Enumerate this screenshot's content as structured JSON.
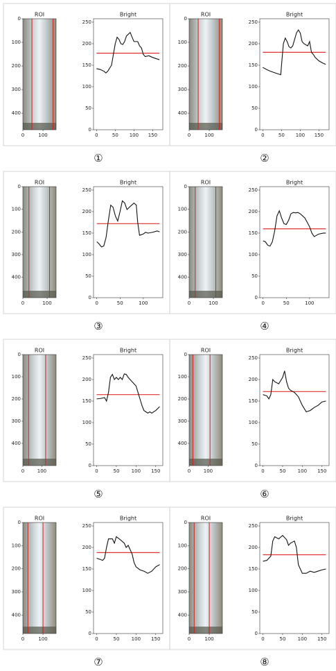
{
  "chart_data": [
    {
      "type": "line",
      "title": "Bright",
      "panel_label": "①",
      "color": "#111111",
      "threshold": 178,
      "threshold_color": "#e03030",
      "x": [
        0,
        10,
        20,
        25,
        30,
        40,
        45,
        50,
        55,
        60,
        65,
        70,
        75,
        80,
        90,
        95,
        100,
        110,
        115,
        120,
        125,
        130,
        140,
        150,
        160,
        168
      ],
      "values": [
        142,
        140,
        136,
        132,
        136,
        150,
        175,
        200,
        215,
        210,
        200,
        198,
        205,
        218,
        226,
        215,
        205,
        205,
        195,
        190,
        175,
        170,
        172,
        168,
        165,
        163
      ],
      "xlim": [
        -8,
        177
      ],
      "ylim": [
        0,
        258
      ],
      "xticks": [
        0,
        50,
        100,
        150
      ],
      "yticks": [
        0,
        50,
        100,
        150,
        200,
        250
      ],
      "roi": {
        "title": "ROI",
        "xlim": [
          0,
          165
        ],
        "ylim": [
          470,
          0
        ],
        "xticks": [
          0,
          100
        ],
        "yticks": [
          0,
          100,
          200,
          300,
          400
        ],
        "lines": [
          45,
          150
        ]
      }
    },
    {
      "type": "line",
      "title": "Bright",
      "panel_label": "②",
      "color": "#111111",
      "threshold": 180,
      "threshold_color": "#e03030",
      "x": [
        0,
        10,
        20,
        30,
        40,
        48,
        50,
        55,
        60,
        65,
        70,
        75,
        80,
        90,
        95,
        100,
        105,
        110,
        120,
        125,
        130,
        135,
        140,
        150,
        160,
        168
      ],
      "values": [
        145,
        140,
        136,
        133,
        130,
        128,
        150,
        200,
        213,
        205,
        193,
        190,
        195,
        225,
        232,
        225,
        205,
        200,
        195,
        205,
        180,
        175,
        168,
        160,
        155,
        152
      ],
      "xlim": [
        -8,
        177
      ],
      "ylim": [
        0,
        258
      ],
      "xticks": [
        0,
        50,
        100,
        150
      ],
      "yticks": [
        0,
        50,
        100,
        150,
        200,
        250
      ],
      "roi": {
        "title": "ROI",
        "xlim": [
          0,
          165
        ],
        "ylim": [
          470,
          0
        ],
        "xticks": [
          0,
          100
        ],
        "yticks": [
          0,
          100,
          200,
          300,
          400
        ],
        "lines": [
          45,
          150
        ]
      }
    },
    {
      "type": "line",
      "title": "Bright",
      "panel_label": "③",
      "color": "#111111",
      "threshold": 172,
      "threshold_color": "#e03030",
      "x": [
        0,
        5,
        10,
        15,
        20,
        25,
        30,
        35,
        40,
        45,
        50,
        55,
        60,
        65,
        70,
        75,
        80,
        85,
        88,
        92,
        100,
        105,
        110,
        120,
        130,
        135
      ],
      "values": [
        130,
        125,
        118,
        120,
        140,
        180,
        215,
        210,
        190,
        178,
        200,
        225,
        220,
        205,
        210,
        215,
        220,
        215,
        175,
        145,
        148,
        152,
        150,
        152,
        155,
        153
      ],
      "xlim": [
        -7,
        142
      ],
      "ylim": [
        0,
        258
      ],
      "xticks": [
        0,
        50,
        100
      ],
      "yticks": [
        0,
        50,
        100,
        150,
        200,
        250
      ],
      "roi": {
        "title": "ROI",
        "xlim": [
          0,
          137
        ],
        "ylim": [
          490,
          0
        ],
        "xticks": [
          0,
          100
        ],
        "yticks": [
          0,
          100,
          200,
          300,
          400
        ],
        "lines": [
          25,
          110
        ]
      }
    },
    {
      "type": "line",
      "title": "Bright",
      "panel_label": "④",
      "color": "#111111",
      "threshold": 160,
      "threshold_color": "#e03030",
      "x": [
        0,
        5,
        10,
        15,
        20,
        25,
        30,
        35,
        40,
        45,
        50,
        55,
        60,
        65,
        70,
        75,
        80,
        90,
        100,
        105,
        110,
        115,
        120,
        130,
        135
      ],
      "values": [
        132,
        130,
        122,
        120,
        130,
        155,
        190,
        202,
        185,
        172,
        170,
        180,
        195,
        198,
        197,
        198,
        195,
        185,
        165,
        150,
        142,
        145,
        148,
        150,
        150
      ],
      "xlim": [
        -7,
        142
      ],
      "ylim": [
        0,
        258
      ],
      "xticks": [
        0,
        50,
        100
      ],
      "yticks": [
        0,
        50,
        100,
        150,
        200,
        250
      ],
      "roi": {
        "title": "ROI",
        "xlim": [
          0,
          137
        ],
        "ylim": [
          490,
          0
        ],
        "xticks": [
          0,
          100
        ],
        "yticks": [
          0,
          100,
          200,
          300,
          400
        ],
        "lines": [
          25,
          110
        ]
      }
    },
    {
      "type": "line",
      "title": "Bright",
      "panel_label": "⑤",
      "color": "#111111",
      "threshold": 165,
      "threshold_color": "#e03030",
      "x": [
        0,
        10,
        20,
        25,
        30,
        35,
        40,
        45,
        50,
        55,
        60,
        65,
        70,
        75,
        80,
        90,
        100,
        105,
        110,
        115,
        120,
        130,
        135,
        140,
        150,
        160
      ],
      "values": [
        155,
        156,
        158,
        150,
        170,
        205,
        212,
        200,
        205,
        200,
        205,
        200,
        213,
        212,
        205,
        195,
        185,
        170,
        155,
        140,
        128,
        122,
        125,
        122,
        128,
        137
      ],
      "xlim": [
        -8,
        168
      ],
      "ylim": [
        0,
        258
      ],
      "xticks": [
        0,
        50,
        100,
        150
      ],
      "yticks": [
        0,
        50,
        100,
        150,
        200,
        250
      ],
      "roi": {
        "title": "ROI",
        "xlim": [
          0,
          175
        ],
        "ylim": [
          500,
          0
        ],
        "xticks": [
          0,
          100
        ],
        "yticks": [
          0,
          100,
          200,
          300,
          400
        ],
        "lines": [
          30,
          120
        ]
      }
    },
    {
      "type": "line",
      "title": "Bright",
      "panel_label": "⑥",
      "color": "#111111",
      "threshold": 172,
      "threshold_color": "#e03030",
      "x": [
        0,
        10,
        15,
        20,
        25,
        30,
        40,
        50,
        55,
        60,
        65,
        70,
        80,
        90,
        100,
        110,
        120,
        130,
        140,
        150,
        160
      ],
      "values": [
        165,
        162,
        155,
        165,
        200,
        195,
        190,
        205,
        220,
        195,
        180,
        175,
        170,
        160,
        140,
        125,
        128,
        135,
        140,
        148,
        150
      ],
      "xlim": [
        -8,
        168
      ],
      "ylim": [
        0,
        258
      ],
      "xticks": [
        0,
        50,
        100,
        150
      ],
      "yticks": [
        0,
        50,
        100,
        150,
        200,
        250
      ],
      "roi": {
        "title": "ROI",
        "xlim": [
          0,
          175
        ],
        "ylim": [
          500,
          0
        ],
        "xticks": [
          0,
          100
        ],
        "yticks": [
          0,
          100,
          200,
          300,
          400
        ],
        "lines": [
          20,
          110
        ]
      }
    },
    {
      "type": "line",
      "title": "Bright",
      "panel_label": "⑦",
      "color": "#111111",
      "threshold": 188,
      "threshold_color": "#e03030",
      "x": [
        0,
        10,
        15,
        20,
        25,
        30,
        40,
        45,
        50,
        60,
        70,
        75,
        80,
        90,
        95,
        100,
        110,
        120,
        130,
        140,
        150,
        160
      ],
      "values": [
        175,
        172,
        170,
        175,
        200,
        220,
        220,
        210,
        225,
        218,
        210,
        200,
        205,
        185,
        165,
        155,
        148,
        145,
        140,
        145,
        155,
        160
      ],
      "xlim": [
        -8,
        168
      ],
      "ylim": [
        0,
        258
      ],
      "xticks": [
        0,
        50,
        100,
        150
      ],
      "yticks": [
        0,
        50,
        100,
        150,
        200,
        250
      ],
      "roi": {
        "title": "ROI",
        "xlim": [
          0,
          165
        ],
        "ylim": [
          480,
          0
        ],
        "xticks": [
          0,
          100
        ],
        "yticks": [
          0,
          100,
          200,
          300,
          400
        ],
        "lines": [
          25,
          100
        ]
      }
    },
    {
      "type": "line",
      "title": "Bright",
      "panel_label": "⑧",
      "color": "#111111",
      "threshold": 183,
      "threshold_color": "#e03030",
      "x": [
        0,
        10,
        15,
        20,
        25,
        30,
        40,
        50,
        60,
        65,
        70,
        80,
        85,
        90,
        95,
        100,
        110,
        120,
        130,
        140,
        150,
        160
      ],
      "values": [
        168,
        170,
        175,
        180,
        215,
        225,
        220,
        228,
        218,
        205,
        210,
        215,
        200,
        160,
        150,
        140,
        140,
        145,
        142,
        145,
        148,
        150
      ],
      "xlim": [
        -8,
        168
      ],
      "ylim": [
        0,
        258
      ],
      "xticks": [
        0,
        50,
        100,
        150
      ],
      "yticks": [
        0,
        50,
        100,
        150,
        200,
        250
      ],
      "roi": {
        "title": "ROI",
        "xlim": [
          0,
          165
        ],
        "ylim": [
          480,
          0
        ],
        "xticks": [
          0,
          100
        ],
        "yticks": [
          0,
          100,
          200,
          300,
          400
        ],
        "lines": [
          25,
          100
        ]
      }
    }
  ]
}
